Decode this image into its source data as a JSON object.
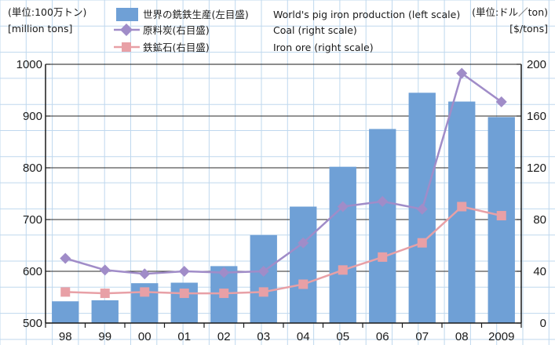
{
  "chart_data": {
    "type": "bar",
    "categories": [
      "98",
      "99",
      "00",
      "01",
      "02",
      "03",
      "04",
      "05",
      "06",
      "07",
      "08",
      "2009"
    ],
    "left_unit": {
      "jp": "(単位:100万トン)",
      "en": "[million tons]"
    },
    "right_unit": {
      "jp": "(単位:ドル／ton)",
      "en": "[$/tons]"
    },
    "ylim_left": [
      500,
      1000
    ],
    "yticks_left": [
      500,
      600,
      700,
      800,
      900,
      1000
    ],
    "ylim_right": [
      0,
      200
    ],
    "yticks_right": [
      0,
      40,
      80,
      120,
      160,
      200
    ],
    "grid": true,
    "legend_position": "top",
    "series": [
      {
        "name_jp": "世界の銑鉄生産(左目盛)",
        "name_en": "World's pig iron production (left scale)",
        "type": "bar",
        "axis": "left",
        "color": "#6fa0d6",
        "values": [
          542,
          544,
          577,
          578,
          610,
          670,
          725,
          802,
          875,
          945,
          928,
          898
        ]
      },
      {
        "name_jp": "原料炭(右目盛)",
        "name_en": "Coal (right scale)",
        "type": "line",
        "axis": "right",
        "color": "#a08cc8",
        "values": [
          50,
          41,
          38,
          40,
          39,
          40,
          62,
          90,
          94,
          88,
          193,
          171
        ]
      },
      {
        "name_jp": "鉄鉱石(右目盛)",
        "name_en": "Iron ore (right scale)",
        "type": "line",
        "axis": "right",
        "color": "#e8a0a6",
        "values": [
          24,
          23,
          24,
          23,
          23,
          24,
          30,
          41,
          51,
          62,
          90,
          83
        ]
      }
    ]
  }
}
